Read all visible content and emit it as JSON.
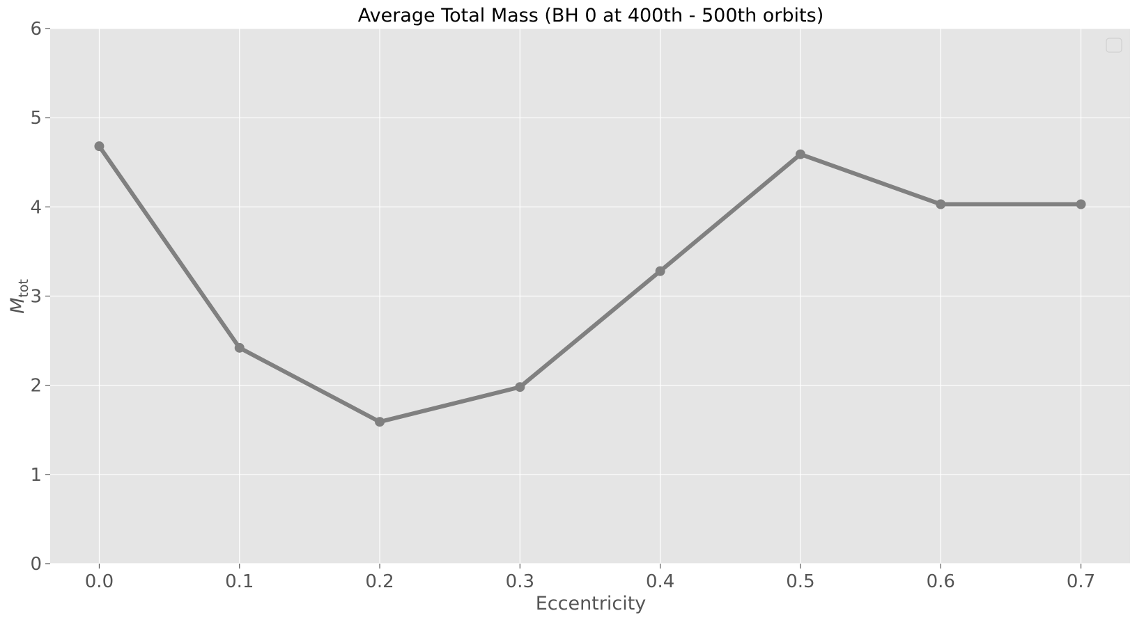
{
  "chart_data": {
    "type": "line",
    "title": "Average Total Mass (BH 0 at 400th - 500th orbits)",
    "xlabel": "Eccentricity",
    "ylabel": "M",
    "ylabel_sub": "tot",
    "x": [
      0.0,
      0.1,
      0.2,
      0.3,
      0.4,
      0.5,
      0.6,
      0.7
    ],
    "x_tick_labels": [
      "0.0",
      "0.1",
      "0.2",
      "0.3",
      "0.4",
      "0.5",
      "0.6",
      "0.7"
    ],
    "y_tick_labels": [
      "0",
      "1",
      "2",
      "3",
      "4",
      "5",
      "6"
    ],
    "y_ticks": [
      0,
      1,
      2,
      3,
      4,
      5,
      6
    ],
    "series": [
      {
        "values": [
          4.68,
          2.42,
          1.59,
          1.98,
          3.28,
          4.59,
          4.03,
          4.03
        ],
        "color": "#808080"
      }
    ],
    "xlim": [
      -0.035,
      0.735
    ],
    "ylim": [
      0,
      6
    ],
    "grid": true,
    "legend": "top-right (empty)",
    "colors": {
      "background": "#e5e5e5",
      "grid": "#ffffff",
      "line": "#808080"
    }
  }
}
